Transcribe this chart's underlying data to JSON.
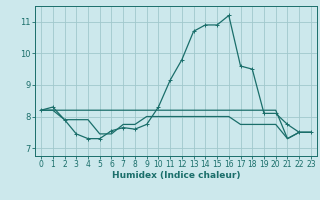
{
  "xlabel": "Humidex (Indice chaleur)",
  "background_color": "#cce8ec",
  "grid_color": "#a0c8cc",
  "line_color": "#1a6e6a",
  "xlim": [
    -0.5,
    23.5
  ],
  "ylim": [
    6.75,
    11.5
  ],
  "yticks": [
    7,
    8,
    9,
    10,
    11
  ],
  "xticks": [
    0,
    1,
    2,
    3,
    4,
    5,
    6,
    7,
    8,
    9,
    10,
    11,
    12,
    13,
    14,
    15,
    16,
    17,
    18,
    19,
    20,
    21,
    22,
    23
  ],
  "series": [
    {
      "x": [
        0,
        1,
        2,
        3,
        4,
        5,
        6,
        7,
        8,
        9,
        10,
        11,
        12,
        13,
        14,
        15,
        16,
        17,
        18,
        19,
        20,
        21,
        22,
        23
      ],
      "y": [
        8.2,
        8.3,
        7.9,
        7.45,
        7.3,
        7.3,
        7.55,
        7.65,
        7.6,
        7.75,
        8.3,
        9.15,
        9.8,
        10.7,
        10.9,
        10.9,
        11.2,
        9.6,
        9.5,
        8.1,
        8.1,
        7.75,
        7.5,
        7.5
      ],
      "marker": true
    },
    {
      "x": [
        0,
        1,
        2,
        3,
        4,
        5,
        6,
        7,
        8,
        9,
        10,
        11,
        12,
        13,
        14,
        15,
        16,
        17,
        18,
        19,
        20,
        21,
        22,
        23
      ],
      "y": [
        8.2,
        8.2,
        7.9,
        7.9,
        7.9,
        7.45,
        7.45,
        7.75,
        7.75,
        8.0,
        8.0,
        8.0,
        8.0,
        8.0,
        8.0,
        8.0,
        8.0,
        7.75,
        7.75,
        7.75,
        7.75,
        7.3,
        7.5,
        7.5
      ],
      "marker": false
    },
    {
      "x": [
        0,
        1,
        2,
        3,
        4,
        5,
        6,
        7,
        8,
        9,
        10,
        11,
        12,
        13,
        14,
        15,
        16,
        17,
        18,
        19,
        20,
        21,
        22,
        23
      ],
      "y": [
        8.2,
        8.2,
        8.2,
        8.2,
        8.2,
        8.2,
        8.2,
        8.2,
        8.2,
        8.2,
        8.2,
        8.2,
        8.2,
        8.2,
        8.2,
        8.2,
        8.2,
        8.2,
        8.2,
        8.2,
        8.2,
        7.3,
        7.5,
        7.5
      ],
      "marker": false
    }
  ],
  "label_fontsize": 6,
  "tick_fontsize": 5.5,
  "xlabel_fontsize": 6.5,
  "linewidth": 0.9,
  "marker_size": 3
}
